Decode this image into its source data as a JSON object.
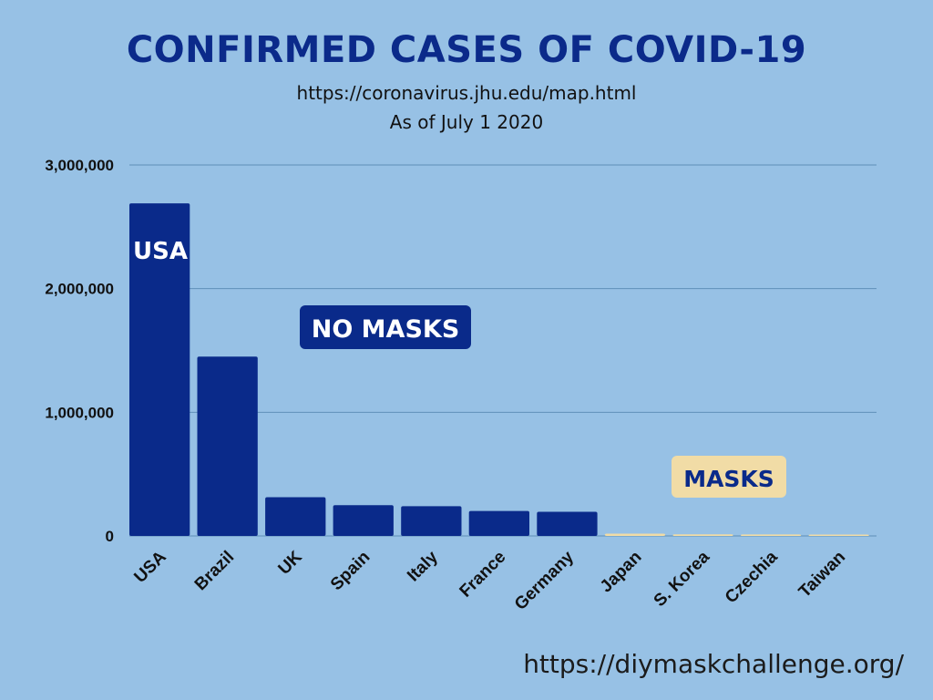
{
  "title": "CONFIRMED CASES OF COVID-19",
  "subtitle_source": "https://coronavirus.jhu.edu/map.html",
  "subtitle_date": "As of July 1 2020",
  "footer_url": "https://diymaskchallenge.org/",
  "annotations": {
    "usa_bar_label": "USA",
    "no_masks_label": "NO MASKS",
    "masks_label": "MASKS"
  },
  "colors": {
    "background": "#97c1e5",
    "title": "#0b2a8a",
    "no_masks_bar": "#0a2a8a",
    "masks_bar": "#f1dca6",
    "gridline": "#5f8fb8"
  },
  "chart_data": {
    "type": "bar",
    "categories": [
      "USA",
      "Brazil",
      "UK",
      "Spain",
      "Italy",
      "France",
      "Germany",
      "Japan",
      "S. Korea",
      "Czechia",
      "Taiwan"
    ],
    "values": [
      2690000,
      1450000,
      313000,
      249000,
      240000,
      202000,
      195000,
      18700,
      12900,
      12100,
      447
    ],
    "groups": [
      "NO MASKS",
      "NO MASKS",
      "NO MASKS",
      "NO MASKS",
      "NO MASKS",
      "NO MASKS",
      "NO MASKS",
      "MASKS",
      "MASKS",
      "MASKS",
      "MASKS"
    ],
    "y_ticks": [
      "0",
      "1,000,000",
      "2,000,000",
      "3,000,000"
    ],
    "ylim": [
      0,
      3000000
    ],
    "grid": true,
    "xlabel": "",
    "ylabel": ""
  }
}
